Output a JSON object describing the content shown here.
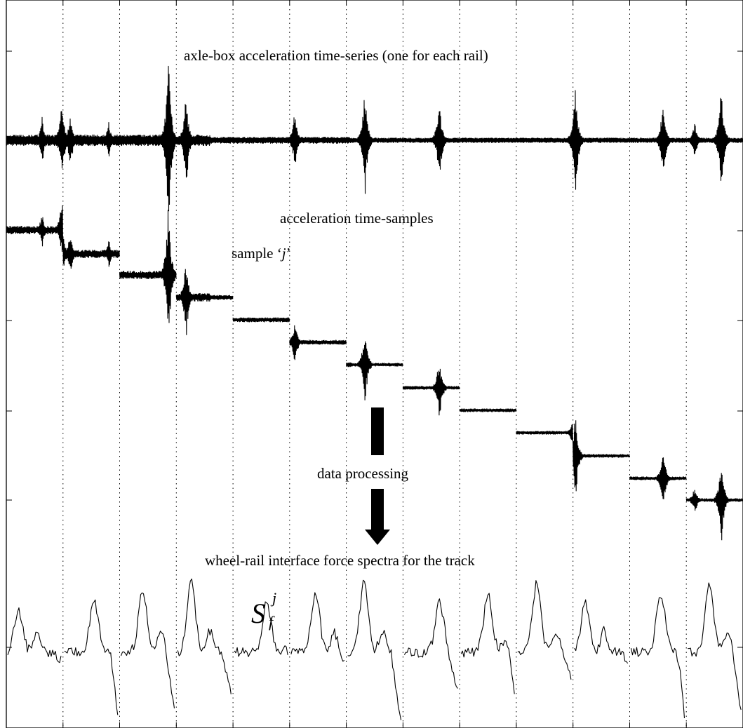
{
  "figure": {
    "labels": {
      "timeseries": "axle-box acceleration time-series (one for each rail)",
      "samples": "acceleration time-samples",
      "sample_j_prefix": "sample ‘",
      "sample_j_var": "j",
      "sample_j_suffix": "’",
      "processing": "data processing",
      "spectra": "wheel-rail interface force spectra for the track"
    },
    "symbol": {
      "base": "S",
      "superscript": "j",
      "subscript": "f"
    },
    "sample_count": 13,
    "colors": {
      "trace": "#000000",
      "arrow": "#000000",
      "grid": "#000000",
      "background": "#ffffff"
    }
  }
}
